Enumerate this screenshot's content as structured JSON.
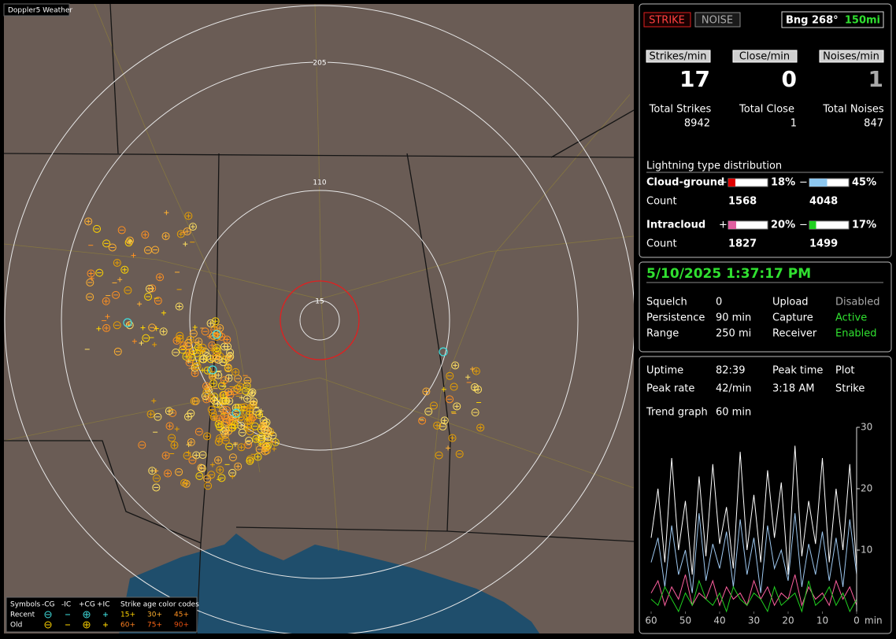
{
  "app_title": "Doppler5 Weather",
  "map": {
    "ring_labels": [
      "205",
      "110",
      "15"
    ],
    "legend": {
      "symbols_label": "Symbols",
      "columns": [
        "-CG",
        "-IC",
        "+CG",
        "+IC"
      ],
      "age_label": "Strike age color codes",
      "rows": [
        "Recent",
        "Old"
      ],
      "ages": [
        {
          "label": "15+",
          "color": "#ffd400"
        },
        {
          "label": "30+",
          "color": "#ffb030"
        },
        {
          "label": "45+",
          "color": "#ff9020"
        },
        {
          "label": "60+",
          "color": "#ff8020"
        },
        {
          "label": "75+",
          "color": "#ff6818"
        },
        {
          "label": "90+",
          "color": "#e85010"
        }
      ]
    }
  },
  "status": {
    "strike": "STRIKE",
    "noise": "NOISE",
    "bearing": "Bng 268°",
    "range": "150mi"
  },
  "rates": [
    {
      "label": "Strikes/min",
      "value": 17,
      "total_label": "Total Strikes",
      "total": 8942
    },
    {
      "label": "Close/min",
      "value": 0,
      "total_label": "Total Close",
      "total": 1
    },
    {
      "label": "Noises/min",
      "value": 1,
      "total_label": "Total Noises",
      "total": 847
    }
  ],
  "distribution": {
    "title": "Lightning type distribution",
    "plus": "+",
    "minus": "−",
    "rows": [
      {
        "label": "Cloud-ground",
        "count_label": "Count",
        "pos": {
          "value": 18,
          "label": "18%"
        },
        "neg": {
          "value": 45,
          "label": "45%"
        },
        "pos_count": 1568,
        "neg_count": 4048,
        "pos_color": "#e00000",
        "neg_color": "#8ec8f0"
      },
      {
        "label": "Intracloud",
        "count_label": "Count",
        "pos": {
          "value": 20,
          "label": "20%"
        },
        "neg": {
          "value": 17,
          "label": "17%"
        },
        "pos_count": 1827,
        "neg_count": 1499,
        "pos_color": "#e060a0",
        "neg_color": "#20d020"
      }
    ]
  },
  "clock": "5/10/2025 1:37:17 PM",
  "settings": [
    {
      "label": "Squelch",
      "value": "0",
      "label2": "Upload",
      "value2": "Disabled",
      "value2_color": "#aaaaaa"
    },
    {
      "label": "Persistence",
      "value": "90 min",
      "label2": "Capture",
      "value2": "Active",
      "value2_color": "#30e030"
    },
    {
      "label": "Range",
      "value": "250 mi",
      "label2": "Receiver",
      "value2": "Enabled",
      "value2_color": "#30e030"
    }
  ],
  "stats": {
    "rows": [
      [
        "Uptime",
        "82:39",
        "Peak time",
        "Plot"
      ],
      [
        "Peak rate",
        "42/min",
        "3:18 AM",
        "Strike"
      ]
    ],
    "trend_label": "Trend graph",
    "trend_span": "60 min"
  },
  "chart_data": {
    "type": "line",
    "x_unit": "min",
    "x": [
      60,
      58,
      56,
      54,
      52,
      50,
      48,
      46,
      44,
      42,
      40,
      38,
      36,
      34,
      32,
      30,
      28,
      26,
      24,
      22,
      20,
      18,
      16,
      14,
      12,
      10,
      8,
      6,
      4,
      2,
      0
    ],
    "xlim": [
      60,
      0
    ],
    "xticks": [
      60,
      50,
      40,
      30,
      20,
      10,
      0
    ],
    "ylim": [
      0,
      30
    ],
    "yticks": [
      10,
      20,
      30
    ],
    "series": [
      {
        "color": "#ffffff",
        "values": [
          12,
          20,
          8,
          25,
          10,
          18,
          6,
          22,
          9,
          24,
          11,
          17,
          7,
          26,
          10,
          19,
          8,
          23,
          12,
          21,
          6,
          27,
          9,
          18,
          11,
          25,
          8,
          20,
          10,
          24,
          7
        ]
      },
      {
        "color": "#9ec8f0",
        "values": [
          8,
          12,
          4,
          14,
          6,
          10,
          3,
          16,
          5,
          11,
          7,
          13,
          4,
          15,
          6,
          12,
          3,
          14,
          7,
          10,
          5,
          16,
          4,
          11,
          6,
          13,
          5,
          12,
          4,
          15,
          6
        ]
      },
      {
        "color": "#ff60a0",
        "values": [
          3,
          5,
          1,
          4,
          2,
          6,
          1,
          3,
          2,
          5,
          1,
          4,
          2,
          3,
          1,
          5,
          2,
          4,
          1,
          3,
          2,
          6,
          1,
          4,
          2,
          3,
          1,
          5,
          2,
          4,
          1
        ]
      },
      {
        "color": "#20d020",
        "values": [
          2,
          1,
          4,
          2,
          0,
          3,
          1,
          5,
          2,
          1,
          3,
          0,
          4,
          2,
          1,
          3,
          2,
          0,
          4,
          1,
          2,
          3,
          0,
          5,
          1,
          2,
          4,
          1,
          3,
          0,
          2
        ]
      }
    ]
  }
}
